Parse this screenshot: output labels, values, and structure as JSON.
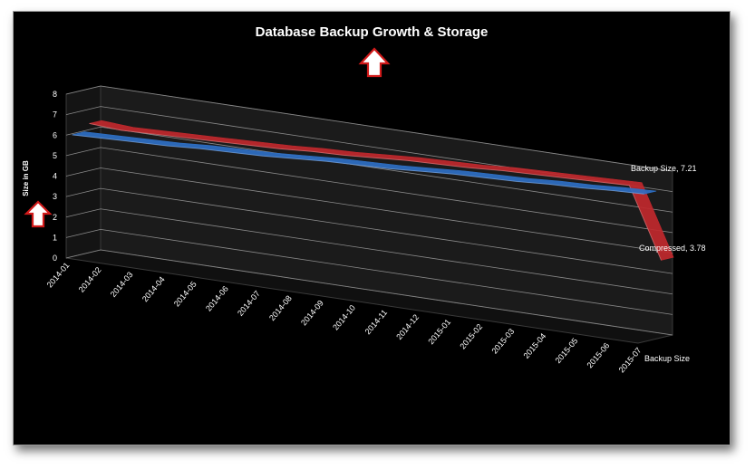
{
  "chart_data": {
    "type": "area",
    "title": "Database Backup Growth & Storage",
    "xlabel": "",
    "ylabel": "Size in GB",
    "ylim": [
      0,
      8
    ],
    "yticks": [
      "0",
      "1",
      "2",
      "3",
      "4",
      "5",
      "6",
      "7",
      "8"
    ],
    "categories": [
      "2014-01",
      "2014-02",
      "2014-03",
      "2014-04",
      "2014-05",
      "2014-06",
      "2014-07",
      "2014-08",
      "2014-09",
      "2014-10",
      "2014-11",
      "2014-12",
      "2015-01",
      "2015-02",
      "2015-03",
      "2015-04",
      "2015-05",
      "2015-06",
      "2015-07"
    ],
    "depth_axis_label": "Backup Size",
    "series": [
      {
        "name": "Compressed",
        "color": "#c0282d",
        "values": [
          6.3,
          6.2,
          6.25,
          6.3,
          6.35,
          6.4,
          6.45,
          6.55,
          6.6,
          6.7,
          6.8,
          6.85,
          6.9,
          7.0,
          7.05,
          7.1,
          7.15,
          7.2,
          3.78
        ]
      },
      {
        "name": "Backup Size",
        "color": "#2e6fc4",
        "values": [
          5.95,
          6.0,
          6.05,
          6.1,
          6.2,
          6.25,
          6.3,
          6.4,
          6.5,
          6.55,
          6.6,
          6.7,
          6.8,
          6.85,
          6.9,
          7.0,
          7.05,
          7.15,
          7.21
        ]
      }
    ],
    "data_labels": [
      {
        "text": "Backup Size, 7.21"
      },
      {
        "text": "Compressed, 3.78"
      }
    ],
    "grid": true,
    "annotations": [
      {
        "type": "arrow",
        "color": "#d11a1a",
        "icon": "up-arrow-outline-icon",
        "near": "title"
      },
      {
        "type": "arrow",
        "color": "#d11a1a",
        "icon": "up-arrow-outline-icon",
        "near": "y-axis"
      }
    ]
  }
}
